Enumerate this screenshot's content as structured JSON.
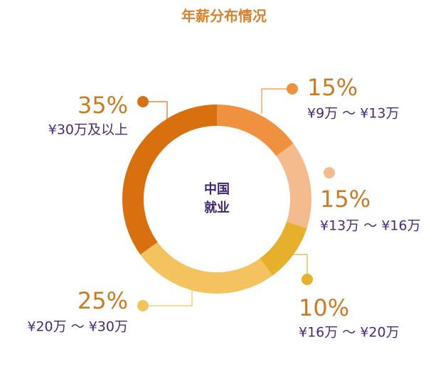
{
  "chart_data": {
    "type": "donut",
    "title": "年薪分布情况",
    "center_label": [
      "中国",
      "就业"
    ],
    "categories": [
      "¥9万 ～ ¥13万",
      "¥13万 ～ ¥16万",
      "¥16万 ～ ¥20万",
      "¥20万 ～ ¥30万",
      "¥30万及以上"
    ],
    "values": [
      15,
      15,
      10,
      25,
      35
    ],
    "value_labels": [
      "15%",
      "15%",
      "10%",
      "25%",
      "35%"
    ],
    "colors": [
      "#f0913f",
      "#f4bb8e",
      "#e6b02c",
      "#f4c35f",
      "#d9700f"
    ]
  }
}
